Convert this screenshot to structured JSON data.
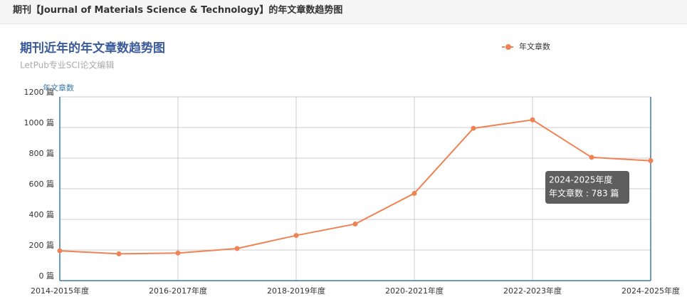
{
  "header": {
    "title": "期刊【Journal of Materials Science & Technology】的年文章数趋势图"
  },
  "chart_data": {
    "type": "line",
    "title": "期刊近年的年文章数趋势图",
    "subtitle": "LetPub专业SCI论文编辑",
    "y_label": "年文章数",
    "categories": [
      "2014-2015年度",
      null,
      "2016-2017年度",
      null,
      "2018-2019年度",
      null,
      "2020-2021年度",
      null,
      "2022-2023年度",
      null,
      "2024-2025年度"
    ],
    "series": [
      {
        "name": "年文章数",
        "color": "#ef8354",
        "values": [
          195,
          175,
          180,
          210,
          295,
          370,
          570,
          995,
          1050,
          805,
          783
        ]
      }
    ],
    "ylim": [
      0,
      1200
    ],
    "yticks": [
      {
        "value": 0,
        "label": "0 篇"
      },
      {
        "value": 200,
        "label": "200 篇"
      },
      {
        "value": 400,
        "label": "400 篇"
      },
      {
        "value": 600,
        "label": "600 篇"
      },
      {
        "value": 800,
        "label": "800 篇"
      },
      {
        "value": 1000,
        "label": "1000 篇"
      },
      {
        "value": 1200,
        "label": "1200 篇"
      }
    ],
    "grid": true,
    "legend": "top-right",
    "tooltip": {
      "title": "2024-2025年度",
      "label": "年文章数 : 783 篇"
    }
  }
}
